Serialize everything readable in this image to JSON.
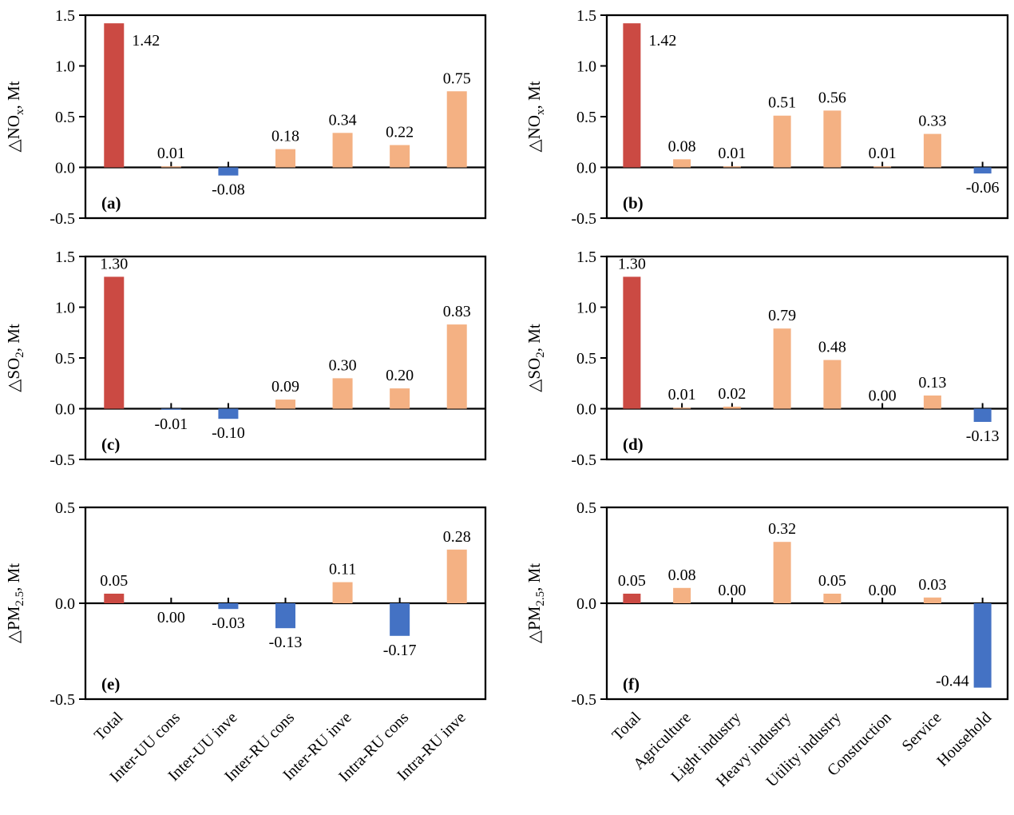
{
  "figure": {
    "background": "#ffffff",
    "colors": {
      "total_bar": "#cb4a43",
      "positive_bar": "#f4b183",
      "negative_bar": "#4472c4",
      "axis": "#000000"
    }
  },
  "chart_data": [
    {
      "type": "bar",
      "tag": "(a)",
      "ylabel": {
        "prefix": "△NO",
        "sub": "x",
        "suffix": ", Mt"
      },
      "ylim": [
        -0.5,
        1.5
      ],
      "yticks": [
        "1.5",
        "1.0",
        "0.5",
        "0.0",
        "-0.5"
      ],
      "categories": [
        "Total",
        "Inter-UU cons",
        "Inter-UU inve",
        "Inter-RU cons",
        "Inter-RU inve",
        "Intra-RU cons",
        "Intra-RU inve"
      ],
      "values": [
        1.42,
        0.01,
        -0.08,
        0.18,
        0.34,
        0.22,
        0.75
      ],
      "labels": [
        "1.42",
        "0.01",
        "-0.08",
        "0.18",
        "0.34",
        "0.22",
        "0.75"
      ],
      "label_pos": [
        "right",
        "above",
        "below",
        "above",
        "above",
        "above",
        "above"
      ]
    },
    {
      "type": "bar",
      "tag": "(b)",
      "ylabel": {
        "prefix": "△NO",
        "sub": "x",
        "suffix": ", Mt"
      },
      "ylim": [
        -0.5,
        1.5
      ],
      "yticks": [
        "1.5",
        "1.0",
        "0.5",
        "0.0",
        "-0.5"
      ],
      "categories": [
        "Total",
        "Agriculture",
        "Light industry",
        "Heavy industry",
        "Utility industry",
        "Construction",
        "Service",
        "Household"
      ],
      "values": [
        1.42,
        0.08,
        0.01,
        0.51,
        0.56,
        0.01,
        0.33,
        -0.06
      ],
      "labels": [
        "1.42",
        "0.08",
        "0.01",
        "0.51",
        "0.56",
        "0.01",
        "0.33",
        "-0.06"
      ],
      "label_pos": [
        "right",
        "above",
        "above",
        "above",
        "above",
        "above",
        "above",
        "below"
      ]
    },
    {
      "type": "bar",
      "tag": "(c)",
      "ylabel": {
        "prefix": "△SO",
        "sub": "2",
        "suffix": ", Mt"
      },
      "ylim": [
        -0.5,
        1.5
      ],
      "yticks": [
        "1.5",
        "1.0",
        "0.5",
        "0.0",
        "-0.5"
      ],
      "categories": [
        "Total",
        "Inter-UU cons",
        "Inter-UU inve",
        "Inter-RU cons",
        "Inter-RU inve",
        "Intra-RU cons",
        "Intra-RU inve"
      ],
      "values": [
        1.3,
        -0.01,
        -0.1,
        0.09,
        0.3,
        0.2,
        0.83
      ],
      "labels": [
        "1.30",
        "-0.01",
        "-0.10",
        "0.09",
        "0.30",
        "0.20",
        "0.83"
      ],
      "label_pos": [
        "above",
        "below",
        "below",
        "above",
        "above",
        "above",
        "above"
      ]
    },
    {
      "type": "bar",
      "tag": "(d)",
      "ylabel": {
        "prefix": "△SO",
        "sub": "2",
        "suffix": ", Mt"
      },
      "ylim": [
        -0.5,
        1.5
      ],
      "yticks": [
        "1.5",
        "1.0",
        "0.5",
        "0.0",
        "-0.5"
      ],
      "categories": [
        "Total",
        "Agriculture",
        "Light industry",
        "Heavy industry",
        "Utility industry",
        "Construction",
        "Service",
        "Household"
      ],
      "values": [
        1.3,
        0.01,
        0.02,
        0.79,
        0.48,
        0.0,
        0.13,
        -0.13
      ],
      "labels": [
        "1.30",
        "0.01",
        "0.02",
        "0.79",
        "0.48",
        "0.00",
        "0.13",
        "-0.13"
      ],
      "label_pos": [
        "above",
        "above",
        "above",
        "above",
        "above",
        "above",
        "above",
        "below"
      ]
    },
    {
      "type": "bar",
      "tag": "(e)",
      "ylabel": {
        "prefix": "△PM",
        "sub": "2.5",
        "suffix": ", Mt"
      },
      "ylim": [
        -0.5,
        0.5
      ],
      "yticks": [
        "0.5",
        "0.0",
        "-0.5"
      ],
      "categories": [
        "Total",
        "Inter-UU cons",
        "Inter-UU inve",
        "Inter-RU cons",
        "Inter-RU inve",
        "Intra-RU cons",
        "Intra-RU inve"
      ],
      "values": [
        0.05,
        0.0,
        -0.03,
        -0.13,
        0.11,
        -0.17,
        0.28
      ],
      "labels": [
        "0.05",
        "0.00",
        "-0.03",
        "-0.13",
        "0.11",
        "-0.17",
        "0.28"
      ],
      "label_pos": [
        "above",
        "below",
        "below",
        "below",
        "above",
        "below",
        "above"
      ]
    },
    {
      "type": "bar",
      "tag": "(f)",
      "ylabel": {
        "prefix": "△PM",
        "sub": "2.5",
        "suffix": ", Mt"
      },
      "ylim": [
        -0.5,
        0.5
      ],
      "yticks": [
        "0.5",
        "0.0",
        "-0.5"
      ],
      "categories": [
        "Total",
        "Agriculture",
        "Light industry",
        "Heavy industry",
        "Utility industry",
        "Construction",
        "Service",
        "Household"
      ],
      "values": [
        0.05,
        0.08,
        0.0,
        0.32,
        0.05,
        0.0,
        0.03,
        -0.44
      ],
      "labels": [
        "0.05",
        "0.08",
        "0.00",
        "0.32",
        "0.05",
        "0.00",
        "0.03",
        "-0.44"
      ],
      "label_pos": [
        "above",
        "above",
        "above",
        "above",
        "above",
        "above",
        "above",
        "left"
      ]
    }
  ]
}
